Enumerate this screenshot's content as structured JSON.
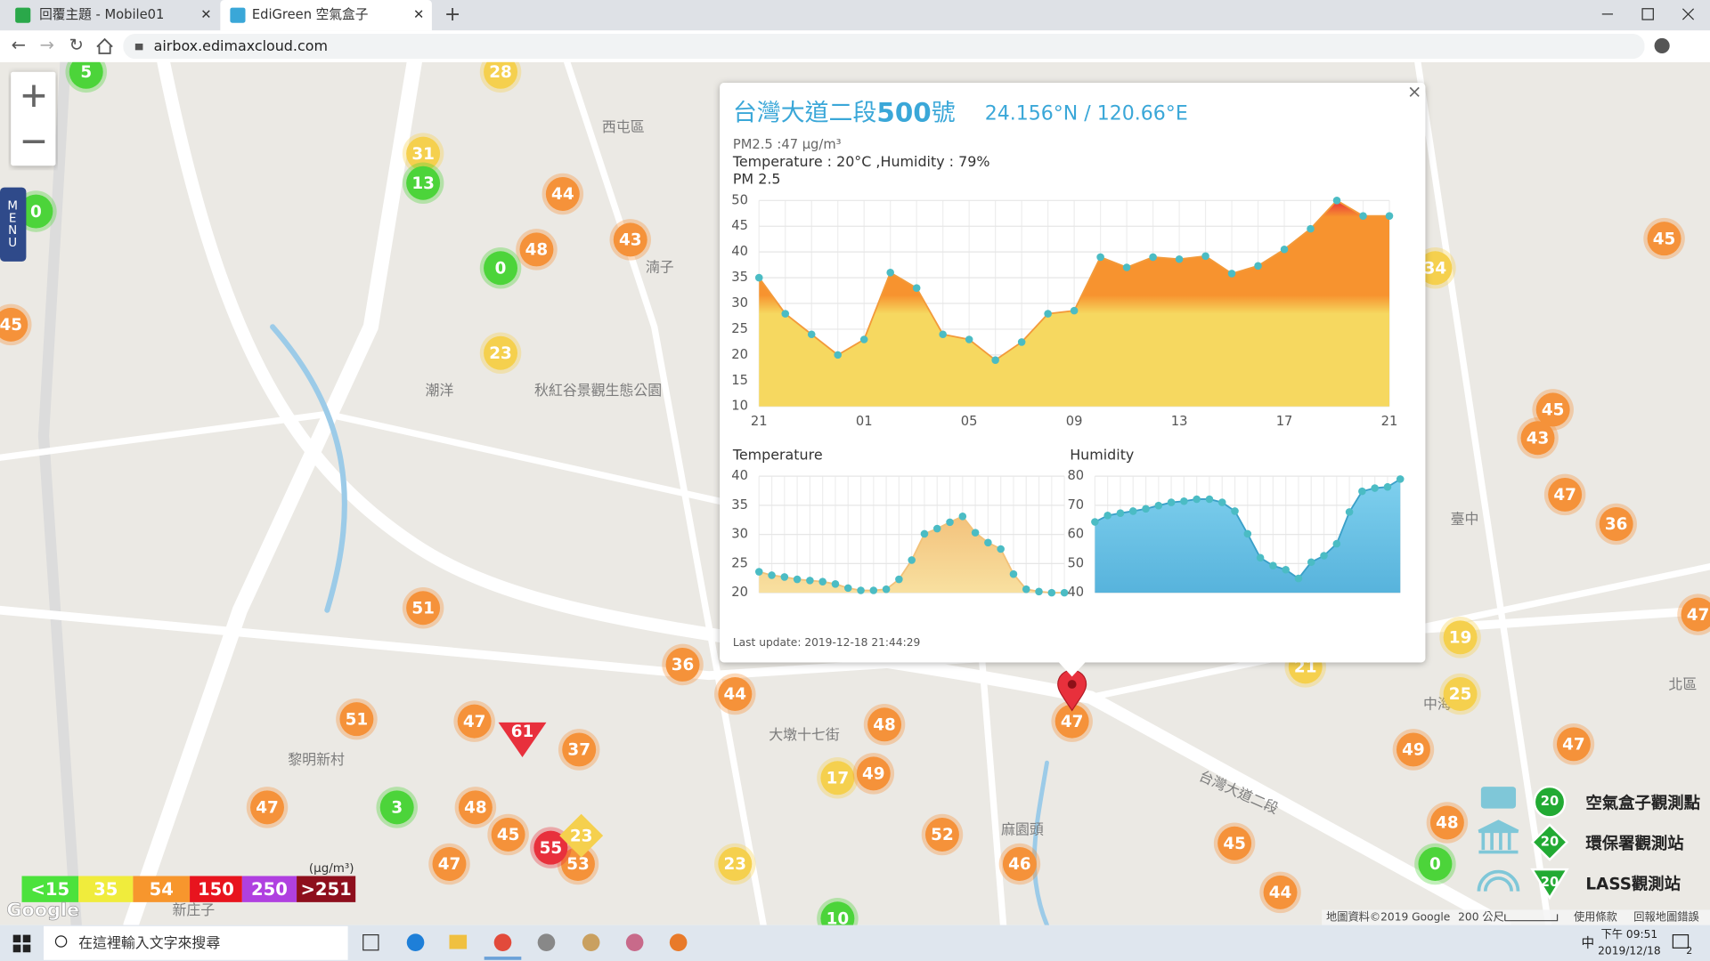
{
  "browser": {
    "tabs": [
      "回覆主題 - Mobile01",
      "EdiGreen 空氣盒子"
    ],
    "url": "airbox.edimaxcloud.com"
  },
  "map": {
    "menu": "MENU",
    "markers": [
      {
        "value": 5,
        "color": "#4cd43a"
      },
      {
        "value": 28,
        "color": "#f5d04e"
      },
      {
        "value": 31,
        "color": "#f5d04e"
      },
      {
        "value": 13,
        "color": "#4cd43a"
      },
      {
        "value": 44,
        "color": "#f5923a"
      },
      {
        "value": 48,
        "color": "#f5923a"
      },
      {
        "value": 43,
        "color": "#f5923a"
      },
      {
        "value": 0,
        "color": "#4cd43a"
      },
      {
        "value": 23,
        "color": "#f5d04e"
      },
      {
        "value": 0,
        "color": "#4cd43a"
      },
      {
        "value": 45,
        "color": "#f5923a"
      },
      {
        "value": 45,
        "color": "#f5923a"
      },
      {
        "value": 34,
        "color": "#f5d04e"
      },
      {
        "value": 45,
        "color": "#f5923a"
      },
      {
        "value": 43,
        "color": "#f5923a"
      },
      {
        "value": 47,
        "color": "#f5923a"
      },
      {
        "value": 36,
        "color": "#f5923a"
      },
      {
        "value": 19,
        "color": "#f5d04e"
      },
      {
        "value": 25,
        "color": "#f5d04e"
      },
      {
        "value": 49,
        "color": "#f5923a"
      },
      {
        "value": 47,
        "color": "#f5923a"
      },
      {
        "value": 47,
        "color": "#f5923a"
      },
      {
        "value": 48,
        "color": "#f5923a"
      },
      {
        "value": 0,
        "color": "#4cd43a"
      },
      {
        "value": 44,
        "color": "#f5923a"
      },
      {
        "value": 45,
        "color": "#f5923a"
      },
      {
        "value": 46,
        "color": "#f5923a"
      },
      {
        "value": 52,
        "color": "#f5923a"
      },
      {
        "value": 23,
        "color": "#f5d04e"
      },
      {
        "value": 17,
        "color": "#f5d04e"
      },
      {
        "value": 49,
        "color": "#f5923a"
      },
      {
        "value": 48,
        "color": "#f5923a"
      },
      {
        "value": 44,
        "color": "#f5923a"
      },
      {
        "value": 36,
        "color": "#f5923a"
      },
      {
        "value": 37,
        "color": "#f5923a"
      },
      {
        "value": 47,
        "color": "#f5923a"
      },
      {
        "value": 48,
        "color": "#f5923a"
      },
      {
        "value": 45,
        "color": "#f5923a"
      },
      {
        "value": 47,
        "color": "#f5923a"
      },
      {
        "value": 47,
        "color": "#f5923a"
      },
      {
        "value": 51,
        "color": "#f5923a"
      },
      {
        "value": 51,
        "color": "#f5923a"
      },
      {
        "value": 3,
        "color": "#4cd43a"
      },
      {
        "value": 53,
        "color": "#f5923a"
      },
      {
        "value": 55,
        "color": "#e8303c"
      },
      {
        "value": 10,
        "color": "#4cd43a"
      },
      {
        "value": 47,
        "color": "#f5923a"
      },
      {
        "value": 21,
        "color": "#f5d04e"
      },
      {
        "value": 61,
        "color": "#e8303c"
      },
      {
        "value": 23,
        "color": "#f5d04e"
      }
    ],
    "places": [
      "西屯區",
      "湳子",
      "潮洋",
      "秋紅谷景觀生態公園",
      "黎明新村",
      "新庄子",
      "麻園頭",
      "中海",
      "大墩十七街",
      "台灣大道二段",
      "臺中",
      "北區"
    ],
    "attribution": "地圖資料©2019 Google",
    "scale": "200 公尺",
    "terms": "使用條款",
    "report": "回報地圖錯誤",
    "logo": "Google"
  },
  "popup": {
    "close": "×",
    "title": {
      "street": "台灣大道二段",
      "number": "500",
      "suffix": "號"
    },
    "coords": "24.156°N / 120.66°E",
    "pm_text": "PM2.5 :47 μg/m³",
    "weather_text": "Temperature : 20°C ,Humidity : 79%",
    "pm25_chart": {
      "type": "area",
      "title": "PM 2.5",
      "categories": [
        "21",
        null,
        null,
        null,
        "01",
        null,
        null,
        null,
        "05",
        null,
        null,
        null,
        "09",
        null,
        null,
        null,
        "13",
        null,
        null,
        null,
        "17",
        null,
        null,
        null,
        "21"
      ],
      "values": [
        35,
        28,
        24,
        20,
        23,
        36,
        33,
        24,
        23,
        19,
        22.5,
        28,
        28.6,
        39,
        37,
        39,
        38.6,
        39.2,
        35.8,
        37.3,
        40.5,
        44.5,
        50,
        47,
        47
      ],
      "ylim": [
        10,
        50
      ],
      "yticks": [
        10,
        15,
        20,
        25,
        30,
        35,
        40,
        45,
        50
      ],
      "color": "#4bbcc4",
      "grid": true
    },
    "temperature_chart": {
      "type": "area",
      "title": "Temperature",
      "values": [
        23.6,
        23,
        22.7,
        22.3,
        22.1,
        21.9,
        21.5,
        20.8,
        20.4,
        20.4,
        20.6,
        22.3,
        25.6,
        30.1,
        31,
        32.1,
        33.1,
        30.3,
        28.6,
        27.5,
        23.2,
        20.6,
        20.2,
        20,
        20
      ],
      "ylim": [
        20,
        40
      ],
      "yticks": [
        20,
        25,
        30,
        35,
        40
      ],
      "color": "#4bbcc4",
      "grid": true
    },
    "humidity_chart": {
      "type": "area",
      "title": "Humidity",
      "values": [
        64.3,
        66.5,
        67.3,
        68,
        68.8,
        69.9,
        71,
        71.4,
        72.1,
        72.1,
        71,
        68,
        60.2,
        52,
        49.3,
        47.9,
        44.9,
        50.5,
        52.7,
        56.8,
        67.7,
        74.8,
        75.9,
        76.3,
        79
      ],
      "ylim": [
        40,
        80
      ],
      "yticks": [
        40,
        50,
        60,
        70,
        80
      ],
      "color": "#4bbcc4",
      "grid": true
    },
    "last_update": "Last update: 2019-12-18 21:44:29"
  },
  "pm_legend": {
    "unit": "(μg/m³)",
    "levels": [
      {
        "label": "<15",
        "color": "#4ce23c"
      },
      {
        "label": "35",
        "color": "#f0ec3c"
      },
      {
        "label": "54",
        "color": "#f7962d"
      },
      {
        "label": "150",
        "color": "#e8141e"
      },
      {
        "label": "250",
        "color": "#b040e0"
      },
      {
        "label": ">251",
        "color": "#8e0f1d"
      }
    ]
  },
  "station_legend": [
    {
      "label": "空氣盒子觀測點",
      "count": 20
    },
    {
      "label": "環保署觀測站",
      "count": 20
    },
    {
      "label": "LASS觀測站",
      "count": 20
    }
  ],
  "taskbar": {
    "search": "在這裡輸入文字來搜尋",
    "time": "下午 09:51",
    "date": "2019/12/18",
    "ime": "中",
    "notifications": 2
  }
}
